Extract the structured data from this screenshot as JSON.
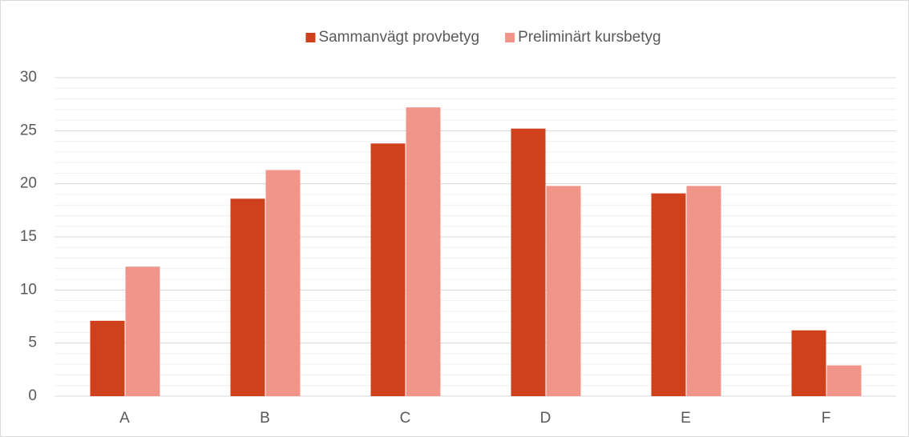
{
  "chart_data": {
    "type": "bar",
    "categories": [
      "A",
      "B",
      "C",
      "D",
      "E",
      "F"
    ],
    "series": [
      {
        "name": "Sammanvägt provbetyg",
        "color": "#cf411d",
        "values": [
          7.1,
          18.6,
          23.8,
          25.2,
          19.1,
          6.2
        ]
      },
      {
        "name": "Preliminärt kursbetyg",
        "color": "#f1958a",
        "values": [
          12.2,
          21.3,
          27.2,
          19.8,
          19.8,
          2.9
        ]
      }
    ],
    "ylim": [
      0,
      30
    ],
    "yticks": [
      0,
      5,
      10,
      15,
      20,
      25,
      30
    ],
    "grid": true,
    "minor_grid_step": 1,
    "legend": "top"
  }
}
